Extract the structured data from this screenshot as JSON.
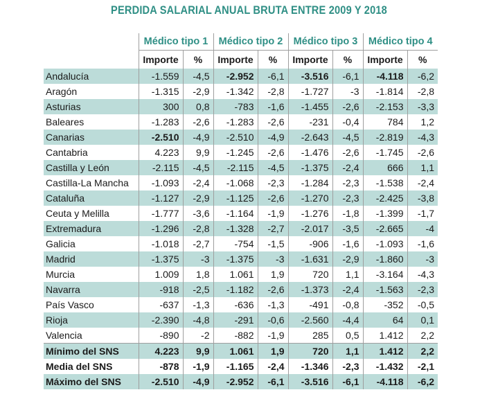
{
  "title": "PERDIDA SALARIAL ANUAL BRUTA ENTRE 2009 Y 2018",
  "groups": [
    "Médico tipo 1",
    "Médico tipo 2",
    "Médico tipo 3",
    "Médico tipo 4"
  ],
  "subheaders": {
    "importe": "Importe",
    "pct": "%"
  },
  "rows": [
    {
      "region": "Andalucía",
      "values": [
        "-1.559",
        "-4,5",
        "-2.952",
        "-6,1",
        "-3.516",
        "-6,1",
        "-4.118",
        "-6,2"
      ],
      "bold_cells": [
        2,
        4,
        6
      ]
    },
    {
      "region": "Aragón",
      "values": [
        "-1.315",
        "-2,9",
        "-1.342",
        "-2,8",
        "-1.727",
        "-3",
        "-1.814",
        "-2,8"
      ],
      "bold_cells": []
    },
    {
      "region": "Asturias",
      "values": [
        "300",
        "0,8",
        "-783",
        "-1,6",
        "-1.455",
        "-2,6",
        "-2.153",
        "-3,3"
      ],
      "bold_cells": []
    },
    {
      "region": "Baleares",
      "values": [
        "-1.283",
        "-2,6",
        "-1.283",
        "-2,6",
        "-231",
        "-0,4",
        "784",
        "1,2"
      ],
      "bold_cells": []
    },
    {
      "region": "Canarias",
      "values": [
        "-2.510",
        "-4,9",
        "-2.510",
        "-4,9",
        "-2.643",
        "-4,5",
        "-2.819",
        "-4,3"
      ],
      "bold_cells": [
        0
      ]
    },
    {
      "region": "Cantabria",
      "values": [
        "4.223",
        "9,9",
        "-1.245",
        "-2,6",
        "-1.476",
        "-2,6",
        "-1.745",
        "-2,6"
      ],
      "bold_cells": []
    },
    {
      "region": "Castilla y León",
      "values": [
        "-2.115",
        "-4,5",
        "-2.115",
        "-4,5",
        "-1.375",
        "-2,4",
        "666",
        "1,1"
      ],
      "bold_cells": []
    },
    {
      "region": "Castilla-La Mancha",
      "values": [
        "-1.093",
        "-2,4",
        "-1.068",
        "-2,3",
        "-1.284",
        "-2,3",
        "-1.538",
        "-2,4"
      ],
      "bold_cells": []
    },
    {
      "region": "Cataluña",
      "values": [
        "-1.127",
        "-2,9",
        "-1.125",
        "-2,6",
        "-1.270",
        "-2,3",
        "-2.425",
        "-3,8"
      ],
      "bold_cells": []
    },
    {
      "region": "Ceuta y Melilla",
      "values": [
        "-1.777",
        "-3,6",
        "-1.164",
        "-1,9",
        "-1.276",
        "-1,8",
        "-1.399",
        "-1,7"
      ],
      "bold_cells": []
    },
    {
      "region": "Extremadura",
      "values": [
        "-1.296",
        "-2,8",
        "-1.328",
        "-2,7",
        "-2.017",
        "-3,5",
        "-2.665",
        "-4"
      ],
      "bold_cells": []
    },
    {
      "region": "Galicia",
      "values": [
        "-1.018",
        "-2,7",
        "-754",
        "-1,5",
        "-906",
        "-1,6",
        "-1.093",
        "-1,6"
      ],
      "bold_cells": []
    },
    {
      "region": "Madrid",
      "values": [
        "-1.375",
        "-3",
        "-1.375",
        "-3",
        "-1.631",
        "-2,9",
        "-1.860",
        "-3"
      ],
      "bold_cells": []
    },
    {
      "region": "Murcia",
      "values": [
        "1.009",
        "1,8",
        "1.061",
        "1,9",
        "720",
        "1,1",
        "-3.164",
        "-4,3"
      ],
      "bold_cells": []
    },
    {
      "region": "Navarra",
      "values": [
        "-918",
        "-2,5",
        "-1.182",
        "-2,6",
        "-1.373",
        "-2,4",
        "-1.563",
        "-2,3"
      ],
      "bold_cells": []
    },
    {
      "region": "País Vasco",
      "values": [
        "-637",
        "-1,3",
        "-636",
        "-1,3",
        "-491",
        "-0,8",
        "-352",
        "-0,5"
      ],
      "bold_cells": []
    },
    {
      "region": "Rioja",
      "values": [
        "-2.390",
        "-4,8",
        "-291",
        "-0,6",
        "-2.560",
        "-4,4",
        "64",
        "0,1"
      ],
      "bold_cells": []
    },
    {
      "region": "Valencia",
      "values": [
        "-890",
        "-2",
        "-882",
        "-1,9",
        "285",
        "0,5",
        "1.412",
        "2,2"
      ],
      "bold_cells": []
    }
  ],
  "summary": [
    {
      "region": "Mínimo del SNS",
      "values": [
        "4.223",
        "9,9",
        "1.061",
        "1,9",
        "720",
        "1,1",
        "1.412",
        "2,2"
      ]
    },
    {
      "region": "Media del SNS",
      "values": [
        "-878",
        "-1,9",
        "-1.165",
        "-2,4",
        "-1.346",
        "-2,3",
        "-1.432",
        "-2,1"
      ]
    },
    {
      "region": "Máximo del SNS",
      "values": [
        "-2.510",
        "-4,9",
        "-2.952",
        "-6,1",
        "-3.516",
        "-6,1",
        "-4.118",
        "-6,2"
      ]
    }
  ],
  "colors": {
    "accent": "#2f8f85",
    "shade": "#bcdcd9",
    "rule": "#9e9e9e"
  }
}
